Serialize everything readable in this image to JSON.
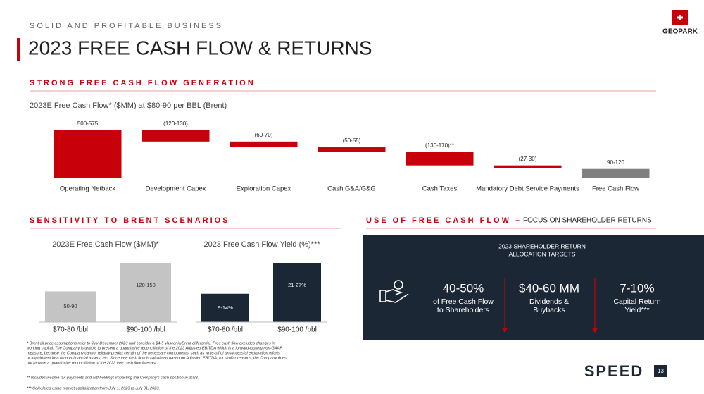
{
  "header": {
    "kicker": "SOLID AND PROFITABLE BUSINESS",
    "title": "2023 FREE CASH FLOW & RETURNS",
    "logo": "GEOPARK"
  },
  "chart_data": [
    {
      "type": "waterfall",
      "section": "STRONG FREE CASH FLOW GENERATION",
      "title": "2023E Free Cash Flow* ($MM) at $80-90 per BBL (Brent)",
      "categories": [
        "Operating Netback",
        "Development Capex",
        "Exploration Capex",
        "Cash G&A/G&G",
        "Cash Taxes",
        "Mandatory Debt Service Payments",
        "Free Cash Flow"
      ],
      "values": [
        537.5,
        -125,
        -65,
        -52.5,
        -150,
        -28.5,
        105
      ],
      "value_labels": [
        "500-575",
        "(120-130)",
        "(60-70)",
        "(50-55)",
        "(130-170)**",
        "(27-30)",
        "90-120"
      ],
      "totals": [
        false,
        false,
        false,
        false,
        false,
        false,
        true
      ],
      "color": "#c8000a",
      "total_color": "#808080"
    },
    {
      "type": "bar",
      "section": "SENSITIVITY TO BRENT SCENARIOS",
      "title": "2023E Free Cash Flow ($MM)*",
      "categories": [
        "$70-80 /bbl",
        "$90-100 /bbl"
      ],
      "values": [
        70,
        135
      ],
      "value_labels": [
        "50-90",
        "120-150"
      ],
      "color": "#c4c4c4"
    },
    {
      "type": "bar",
      "title": "2023 Free Cash Flow Yield (%)***",
      "categories": [
        "$70-80 /bbl",
        "$90-100 /bbl"
      ],
      "values": [
        11.5,
        24
      ],
      "value_labels": [
        "9-14%",
        "21-27%"
      ],
      "color": "#1c2736"
    }
  ],
  "returns": {
    "section": "USE OF FREE CASH FLOW –",
    "section_note": "FOCUS ON SHAREHOLDER RETURNS",
    "panel_title": [
      "2023 SHAREHOLDER RETURN",
      "ALLOCATION TARGETS"
    ],
    "items": [
      {
        "value": "40-50%",
        "label": [
          "of Free Cash Flow",
          "to Shareholders"
        ]
      },
      {
        "value": "$40-60 MM",
        "label": [
          "Dividends &",
          "Buybacks"
        ]
      },
      {
        "value": "7-10%",
        "label": [
          "Capital Return",
          "Yield***"
        ]
      }
    ]
  },
  "footnotes": [
    "* Brent oil price assumptions refer to July-December 2023 and consider a $4-5 Vasconia/Brent differential. Free cash flow excludes changes in",
    "working capital. The Company is unable to present a quantitative reconciliation of the 2023 Adjusted EBITDA which is a forward-looking non-GAAP",
    "measure, because the Company cannot reliably predict certain of the necessary components, such as write-off of unsuccessful exploration efforts",
    "or impairment loss on non-financial assets, etc. Since free cash flow is calculated based on Adjusted EBITDA, for similar reasons, the Company does",
    "not provide a quantitative reconciliation of the 2023 free cash flow forecast.",
    "** Includes income tax payments and withholdings impacting the Company's cash position in 2023.",
    "*** Calculated using market capitalization from July 1, 2023 to July 31, 2023."
  ],
  "footer": {
    "brand": "SPEED",
    "page": "13"
  }
}
